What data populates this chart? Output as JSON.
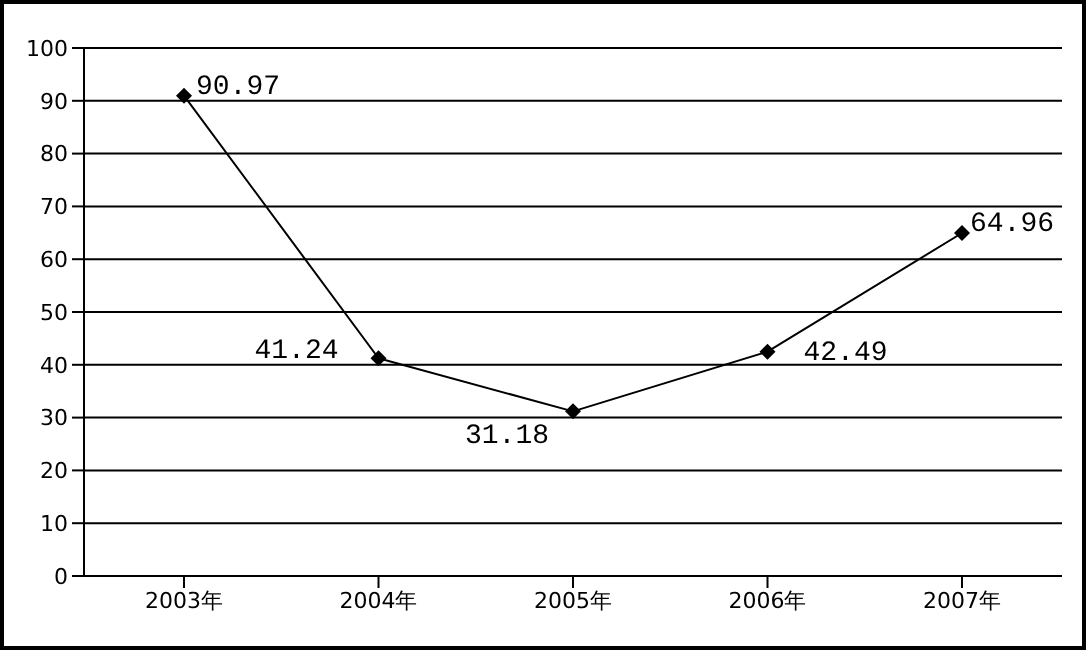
{
  "chart_data": {
    "type": "line",
    "categories": [
      "2003年",
      "2004年",
      "2005年",
      "2006年",
      "2007年"
    ],
    "series": [
      {
        "color": "#000000",
        "values": [
          90.97,
          41.24,
          31.18,
          42.49,
          64.96
        ]
      }
    ],
    "ylim": [
      0,
      100
    ],
    "yticks": [
      0,
      10,
      20,
      30,
      40,
      50,
      60,
      70,
      80,
      90,
      100
    ],
    "grid": "y",
    "marker": "diamond",
    "line_style": "solid",
    "data_labels": true
  }
}
